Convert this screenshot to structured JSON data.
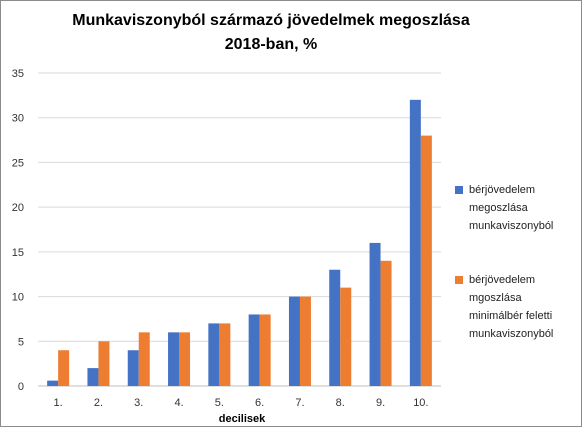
{
  "chart_data": {
    "type": "bar",
    "title_line1": "Munkaviszonyból származó jövedelmek megoszlása",
    "title_line2": "2018-ban, %",
    "xlabel": "decilisek",
    "ylabel": "",
    "ylim": [
      0,
      35
    ],
    "yticks": [
      "0",
      "5",
      "10",
      "15",
      "20",
      "25",
      "30",
      "35"
    ],
    "grid": true,
    "legend_position": "right",
    "categories": [
      "1.",
      "2.",
      "3.",
      "4.",
      "5.",
      "6.",
      "7.",
      "8.",
      "9.",
      "10."
    ],
    "series": [
      {
        "name_lines": [
          "bérjövedelem",
          "megoszlása",
          "munkaviszonyból"
        ],
        "color": "#4472C4",
        "values": [
          0.6,
          2,
          4,
          6,
          7,
          8,
          10,
          13,
          16,
          32
        ]
      },
      {
        "name_lines": [
          "bérjövedelem",
          "mgoszlása",
          "minimálbér feletti",
          "munkaviszonyból"
        ],
        "color": "#ED7D31",
        "values": [
          4,
          5,
          6,
          6,
          7,
          8,
          10,
          11,
          14,
          28
        ]
      }
    ]
  }
}
